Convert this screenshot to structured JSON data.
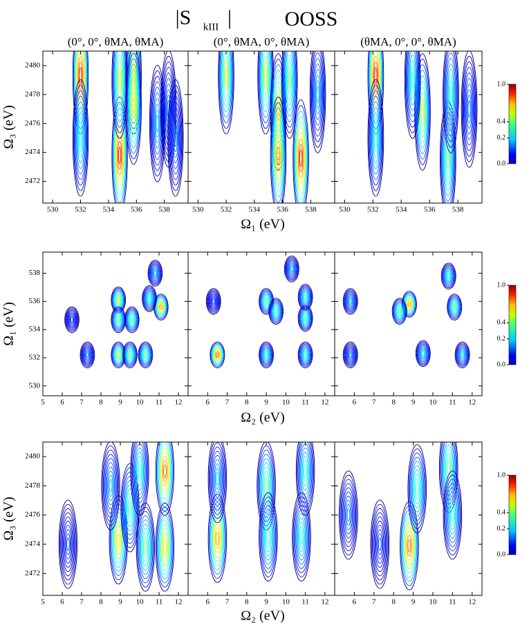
{
  "title": {
    "prefix": "|S",
    "sub": "kIII",
    "suffix": "|",
    "label": "OOSS"
  },
  "columns": [
    "(0°, 0°, θMA, θMA)",
    "(0°, θMA, 0°, θMA)",
    "(θMA, 0°, 0°, θMA)"
  ],
  "chart_data": [
    {
      "type": "contour",
      "xlabel": "Ω₁ (eV)",
      "ylabel": "Ω₃ (eV)",
      "xlim": [
        529.3,
        539.7
      ],
      "xticks": [
        530,
        532,
        534,
        536,
        538
      ],
      "ylim": [
        2470.5,
        2481
      ],
      "yticks": [
        2472,
        2474,
        2476,
        2478,
        2480
      ],
      "cticks": [
        {
          "value": 0,
          "label": "0.0"
        },
        0.2,
        0.4,
        {
          "value": 1,
          "label": "1.0"
        }
      ],
      "panels": [
        {
          "peaks": [
            [
              532,
              2479.3,
              0.9
            ],
            [
              532,
              2475,
              0.3
            ],
            [
              534.8,
              2473.8,
              0.9
            ],
            [
              534.8,
              2479,
              0.5
            ],
            [
              535.8,
              2479.3,
              0.6
            ],
            [
              535.8,
              2477.2,
              0.6
            ],
            [
              537.5,
              2476,
              0.2
            ],
            [
              538.3,
              2477,
              0.15
            ],
            [
              538.8,
              2475,
              0.15
            ]
          ]
        },
        {
          "peaks": [
            [
              532,
              2479.3,
              0.5
            ],
            [
              534.8,
              2479.3,
              0.5
            ],
            [
              535.7,
              2476.8,
              0.6
            ],
            [
              535.7,
              2473.8,
              0.7
            ],
            [
              537.3,
              2473.6,
              0.9
            ],
            [
              536.5,
              2479,
              0.4
            ],
            [
              538.5,
              2478,
              0.2
            ]
          ]
        },
        {
          "peaks": [
            [
              532.2,
              2479.3,
              0.9
            ],
            [
              532.2,
              2475,
              0.3
            ],
            [
              535.5,
              2476.8,
              0.5
            ],
            [
              534.8,
              2479,
              0.3
            ],
            [
              537.3,
              2473.5,
              0.4
            ],
            [
              537.5,
              2478,
              0.3
            ],
            [
              538.8,
              2477,
              0.15
            ]
          ]
        }
      ]
    },
    {
      "type": "contour",
      "xlabel": "Ω₂ (eV)",
      "ylabel": "Ω₁ (eV)",
      "xlim": [
        5,
        12.5
      ],
      "xticks": [
        5,
        6,
        7,
        8,
        9,
        10,
        11,
        12
      ],
      "ylim": [
        529.3,
        539.5
      ],
      "yticks": [
        530,
        532,
        534,
        536,
        538
      ],
      "cticks": [
        {
          "value": 0,
          "label": "0.0"
        },
        0.2,
        0.4,
        {
          "value": 1,
          "label": "1.0"
        }
      ],
      "panels": [
        {
          "peaks": [
            [
              8.9,
              536.1,
              0.5
            ],
            [
              8.9,
              532.2,
              0.5
            ],
            [
              9.5,
              532.2,
              0.4
            ],
            [
              10.3,
              532.2,
              0.4
            ],
            [
              11.1,
              535.6,
              0.7
            ],
            [
              9.6,
              534.7,
              0.4
            ],
            [
              8.9,
              534.7,
              0.4
            ],
            [
              10.5,
              536.2,
              0.3
            ],
            [
              10.8,
              538,
              0.2
            ],
            [
              6.5,
              534.7,
              0.1
            ],
            [
              7.3,
              532.2,
              0.15
            ]
          ]
        },
        {
          "peaks": [
            [
              6.5,
              532.2,
              0.8
            ],
            [
              6.3,
              536,
              0.1
            ],
            [
              9,
              536,
              0.4
            ],
            [
              9.5,
              535.3,
              0.35
            ],
            [
              9,
              532.2,
              0.3
            ],
            [
              11,
              532.2,
              0.3
            ],
            [
              11,
              534.8,
              0.35
            ],
            [
              11,
              536.3,
              0.3
            ],
            [
              10.3,
              538.3,
              0.2
            ]
          ]
        },
        {
          "peaks": [
            [
              8.8,
              535.8,
              0.7
            ],
            [
              8.3,
              535.3,
              0.4
            ],
            [
              5.8,
              536,
              0.2
            ],
            [
              5.8,
              532.2,
              0.15
            ],
            [
              9.5,
              532.3,
              0.25
            ],
            [
              11.1,
              535.6,
              0.4
            ],
            [
              10.8,
              537.8,
              0.3
            ],
            [
              11.5,
              532.2,
              0.25
            ]
          ]
        }
      ]
    },
    {
      "type": "contour",
      "xlabel": "Ω₂ (eV)",
      "ylabel": "Ω₃ (eV)",
      "xlim": [
        5,
        12.5
      ],
      "xticks": [
        5,
        6,
        7,
        8,
        9,
        10,
        11,
        12
      ],
      "ylim": [
        2470.5,
        2481
      ],
      "yticks": [
        2472,
        2474,
        2476,
        2478,
        2480
      ],
      "cticks": [
        {
          "value": 0,
          "label": "0.0"
        },
        0.2,
        0.4,
        {
          "value": 1,
          "label": "1.0"
        }
      ],
      "panels": [
        {
          "peaks": [
            [
              8.9,
              2474.3,
              0.6
            ],
            [
              11.3,
              2479,
              0.8
            ],
            [
              11.3,
              2473.8,
              0.6
            ],
            [
              10.3,
              2473.8,
              0.4
            ],
            [
              9.5,
              2476.5,
              0.35
            ],
            [
              10,
              2479,
              0.3
            ],
            [
              8.5,
              2478,
              0.2
            ],
            [
              6.3,
              2474,
              0.1
            ]
          ]
        },
        {
          "peaks": [
            [
              6.5,
              2474.4,
              0.7
            ],
            [
              6.5,
              2478.5,
              0.2
            ],
            [
              9,
              2478,
              0.4
            ],
            [
              9.1,
              2474.5,
              0.35
            ],
            [
              10.8,
              2474.5,
              0.3
            ],
            [
              11,
              2479,
              0.3
            ]
          ]
        },
        {
          "peaks": [
            [
              8.8,
              2473.9,
              0.8
            ],
            [
              9.2,
              2477.8,
              0.35
            ],
            [
              10.8,
              2479.2,
              0.4
            ],
            [
              11,
              2476,
              0.3
            ],
            [
              5.7,
              2476,
              0.15
            ],
            [
              7.3,
              2474,
              0.1
            ]
          ]
        }
      ]
    }
  ]
}
